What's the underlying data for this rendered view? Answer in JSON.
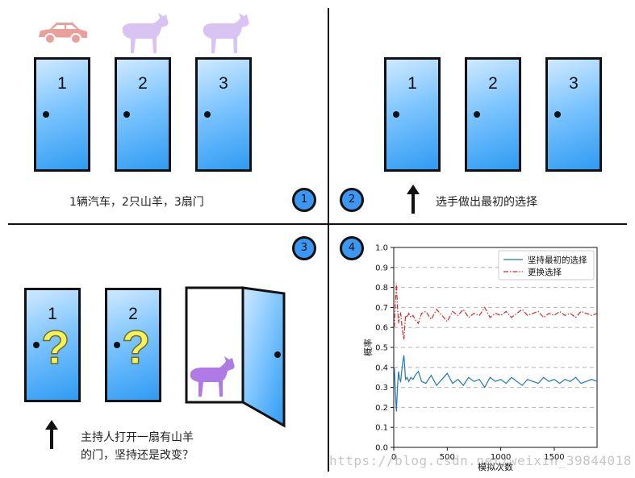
{
  "panels": {
    "p1": {
      "badge": "1",
      "doors": [
        "1",
        "2",
        "3"
      ],
      "caption": "1辆汽车，2只山羊，3扇门",
      "icons": [
        "car-icon",
        "goat-icon",
        "goat-icon"
      ]
    },
    "p2": {
      "badge": "2",
      "doors": [
        "1",
        "2",
        "3"
      ],
      "caption": "选手做出最初的选择"
    },
    "p3": {
      "badge": "3",
      "doors": [
        "1",
        "2"
      ],
      "question_mark": "?",
      "caption_line1": "主持人打开一扇有山羊",
      "caption_line2": "的门，坚持还是改变？"
    },
    "p4": {
      "badge": "4"
    }
  },
  "colors": {
    "door": "#3c9cf2",
    "badge": "#3c97f2",
    "car": "#e9a09a",
    "goat_light": "#d9c3f2",
    "goat_dark": "#b07ae6",
    "question": "#f6f35a",
    "series_keep": "#1f77b4",
    "series_switch": "#d62728"
  },
  "chart_data": {
    "type": "line",
    "xlabel": "模拟次数",
    "ylabel": "概率",
    "xlim": [
      0,
      1900
    ],
    "ylim": [
      0.0,
      1.0
    ],
    "xticks": [
      0,
      500,
      1000,
      1500
    ],
    "yticks": [
      0.0,
      0.1,
      0.2,
      0.3,
      0.4,
      0.5,
      0.6,
      0.7,
      0.8,
      0.9,
      1.0
    ],
    "grid": "horizontal-dashed",
    "legend_position": "top-right",
    "series": [
      {
        "name": "坚持最初的选择",
        "style": "solid",
        "x": [
          5,
          15,
          25,
          35,
          45,
          55,
          65,
          80,
          95,
          110,
          125,
          140,
          160,
          180,
          200,
          230,
          260,
          300,
          350,
          400,
          450,
          500,
          550,
          600,
          650,
          700,
          750,
          800,
          850,
          900,
          950,
          1000,
          1050,
          1100,
          1150,
          1200,
          1250,
          1300,
          1350,
          1400,
          1450,
          1500,
          1550,
          1600,
          1650,
          1700,
          1750,
          1800,
          1850,
          1900
        ],
        "y": [
          0.4,
          0.28,
          0.18,
          0.3,
          0.38,
          0.34,
          0.33,
          0.41,
          0.46,
          0.34,
          0.35,
          0.33,
          0.35,
          0.34,
          0.36,
          0.38,
          0.33,
          0.32,
          0.36,
          0.31,
          0.34,
          0.37,
          0.32,
          0.34,
          0.31,
          0.35,
          0.33,
          0.34,
          0.3,
          0.35,
          0.33,
          0.34,
          0.32,
          0.35,
          0.33,
          0.31,
          0.34,
          0.33,
          0.32,
          0.35,
          0.33,
          0.34,
          0.32,
          0.34,
          0.33,
          0.35,
          0.32,
          0.33,
          0.34,
          0.33
        ]
      },
      {
        "name": "更换选择",
        "style": "dash-dot",
        "x": [
          5,
          15,
          25,
          35,
          45,
          55,
          65,
          80,
          95,
          110,
          125,
          140,
          160,
          180,
          200,
          230,
          260,
          300,
          350,
          400,
          450,
          500,
          550,
          600,
          650,
          700,
          750,
          800,
          850,
          900,
          950,
          1000,
          1050,
          1100,
          1150,
          1200,
          1250,
          1300,
          1350,
          1400,
          1450,
          1500,
          1550,
          1600,
          1650,
          1700,
          1750,
          1800,
          1850,
          1900
        ],
        "y": [
          0.6,
          0.72,
          0.82,
          0.7,
          0.62,
          0.66,
          0.67,
          0.59,
          0.54,
          0.66,
          0.65,
          0.67,
          0.65,
          0.66,
          0.64,
          0.62,
          0.67,
          0.68,
          0.64,
          0.69,
          0.66,
          0.63,
          0.68,
          0.66,
          0.69,
          0.65,
          0.67,
          0.66,
          0.7,
          0.65,
          0.67,
          0.66,
          0.68,
          0.65,
          0.67,
          0.69,
          0.66,
          0.67,
          0.68,
          0.65,
          0.67,
          0.66,
          0.68,
          0.66,
          0.67,
          0.65,
          0.68,
          0.67,
          0.66,
          0.67
        ]
      }
    ]
  },
  "watermark": "https://blog.csdn.net/weixin_39844018"
}
